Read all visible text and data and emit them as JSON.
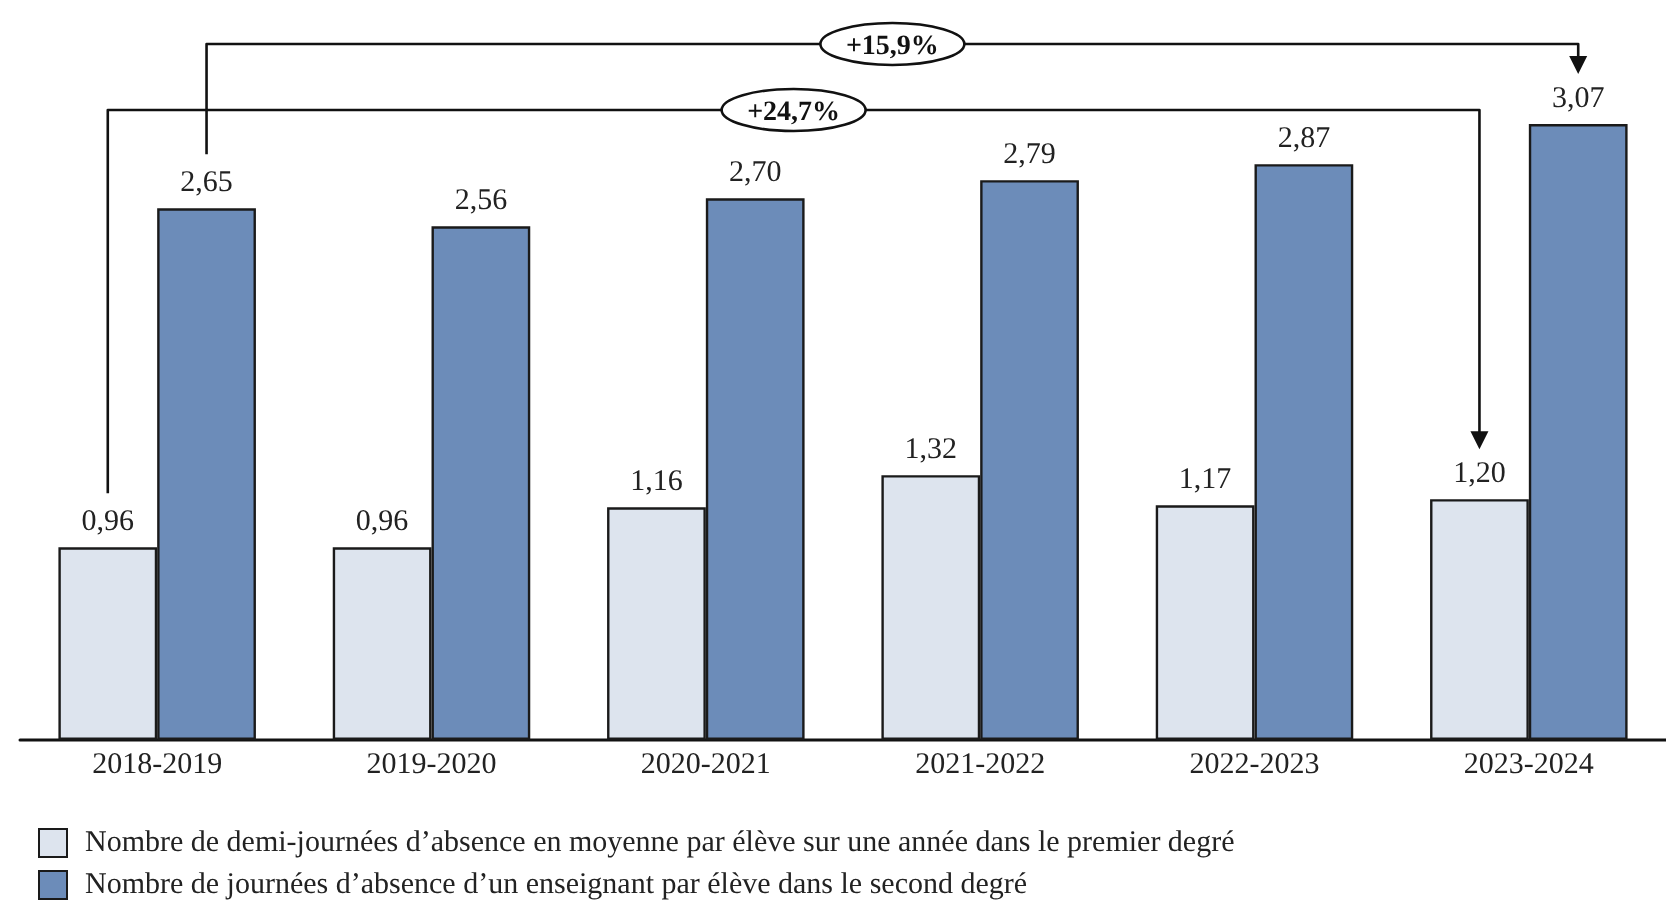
{
  "chart_data": {
    "type": "bar",
    "categories": [
      "2018-2019",
      "2019-2020",
      "2020-2021",
      "2021-2022",
      "2022-2023",
      "2023-2024"
    ],
    "series": [
      {
        "name": "Nombre de demi-journées d’absence en moyenne par élève sur une année dans le premier degré",
        "color": "#dde4ee",
        "values": [
          0.96,
          0.96,
          1.16,
          1.32,
          1.17,
          1.2
        ],
        "value_labels": [
          "0,96",
          "0,96",
          "1,16",
          "1,32",
          "1,17",
          "1,20"
        ]
      },
      {
        "name": "Nombre de journées d’absence d’un enseignant par élève dans le second degré",
        "color": "#6c8cb9",
        "values": [
          2.65,
          2.56,
          2.7,
          2.79,
          2.87,
          3.07
        ],
        "value_labels": [
          "2,65",
          "2,56",
          "2,70",
          "2,79",
          "2,87",
          "3,07"
        ]
      }
    ],
    "annotations": [
      "+15,9%",
      "+24,7%"
    ],
    "legend": "bottom left",
    "grid": false,
    "tick_labels": "x"
  }
}
